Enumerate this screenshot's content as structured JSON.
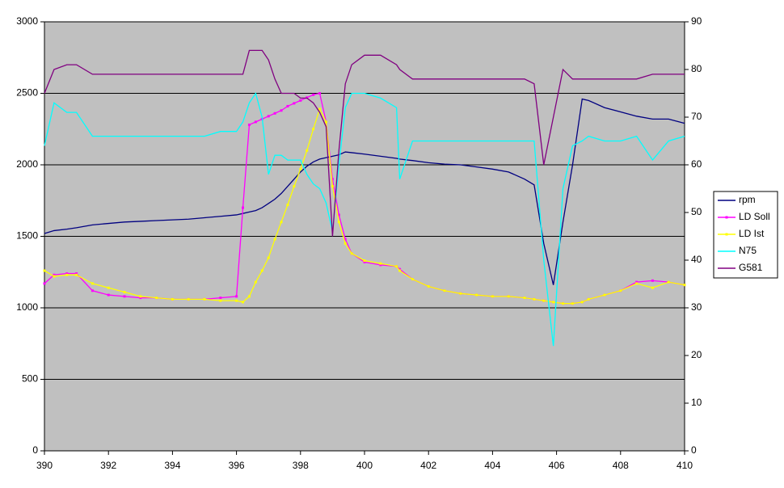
{
  "chart_data": {
    "type": "line",
    "x": [
      390,
      390.3,
      390.7,
      391,
      391.5,
      392,
      392.5,
      393,
      393.5,
      394,
      394.5,
      395,
      395.5,
      396,
      396.2,
      396.4,
      396.6,
      396.8,
      397,
      397.2,
      397.4,
      397.6,
      397.8,
      398,
      398.2,
      398.4,
      398.6,
      398.8,
      399,
      399.2,
      399.4,
      399.6,
      400,
      400.5,
      401,
      401.1,
      401.5,
      402,
      402.5,
      403,
      403.5,
      404,
      404.5,
      405,
      405.3,
      405.6,
      405.9,
      406.2,
      406.5,
      406.8,
      407,
      407.5,
      408,
      408.5,
      409,
      409.5,
      410
    ],
    "series": [
      {
        "name": "rpm",
        "color": "#000080",
        "markers": false,
        "values": [
          1520,
          1540,
          1550,
          1560,
          1580,
          1590,
          1600,
          1605,
          1610,
          1615,
          1620,
          1630,
          1640,
          1650,
          1660,
          1670,
          1680,
          1700,
          1730,
          1760,
          1800,
          1850,
          1900,
          1950,
          1990,
          2020,
          2040,
          2050,
          2060,
          2070,
          2090,
          2085,
          2075,
          2060,
          2045,
          2040,
          2030,
          2015,
          2005,
          2000,
          1985,
          1970,
          1950,
          1900,
          1860,
          1450,
          1160,
          1600,
          2000,
          2460,
          2450,
          2400,
          2370,
          2340,
          2320,
          2320,
          2290
        ]
      },
      {
        "name": "LD Soll",
        "color": "#ff00ff",
        "markers": true,
        "values": [
          1170,
          1230,
          1240,
          1240,
          1120,
          1090,
          1080,
          1070,
          1070,
          1060,
          1060,
          1060,
          1070,
          1080,
          1700,
          2280,
          2300,
          2320,
          2340,
          2360,
          2380,
          2410,
          2430,
          2450,
          2470,
          2490,
          2500,
          2300,
          1900,
          1650,
          1480,
          1380,
          1320,
          1300,
          1290,
          1270,
          1200,
          1150,
          1120,
          1100,
          1090,
          1080,
          1080,
          1070,
          1060,
          1050,
          1040,
          1030,
          1030,
          1040,
          1060,
          1090,
          1120,
          1180,
          1190,
          1180,
          1160
        ]
      },
      {
        "name": "LD Ist",
        "color": "#ffff00",
        "markers": true,
        "values": [
          1260,
          1220,
          1230,
          1230,
          1170,
          1140,
          1110,
          1080,
          1070,
          1060,
          1060,
          1060,
          1050,
          1050,
          1040,
          1080,
          1180,
          1260,
          1350,
          1480,
          1600,
          1720,
          1850,
          1970,
          2100,
          2250,
          2390,
          2300,
          1850,
          1600,
          1450,
          1380,
          1330,
          1310,
          1290,
          1260,
          1200,
          1150,
          1120,
          1100,
          1090,
          1080,
          1080,
          1070,
          1060,
          1050,
          1040,
          1030,
          1030,
          1040,
          1060,
          1090,
          1120,
          1170,
          1140,
          1180,
          1160
        ]
      },
      {
        "name": "N75",
        "color": "#00ffff",
        "markers": false,
        "axis": "y2",
        "values": [
          64,
          73,
          71,
          71,
          66,
          66,
          66,
          66,
          66,
          66,
          66,
          66,
          67,
          67,
          69,
          73,
          75,
          70,
          58,
          62,
          62,
          61,
          61,
          61,
          58,
          56,
          55,
          52,
          46,
          60,
          72,
          75,
          75,
          74,
          72,
          57,
          65,
          65,
          65,
          65,
          65,
          65,
          65,
          65,
          65,
          40,
          22,
          55,
          64,
          65,
          66,
          65,
          65,
          66,
          61,
          65,
          66
        ]
      },
      {
        "name": "G581",
        "color": "#800080",
        "markers": false,
        "axis": "y2",
        "values": [
          75,
          80,
          81,
          81,
          79,
          79,
          79,
          79,
          79,
          79,
          79,
          79,
          79,
          79,
          79,
          84,
          84,
          84,
          82,
          78,
          75,
          75,
          75,
          74,
          74,
          73,
          71,
          68,
          45,
          63,
          77,
          81,
          83,
          83,
          81,
          80,
          78,
          78,
          78,
          78,
          78,
          78,
          78,
          78,
          77,
          60,
          70,
          80,
          78,
          78,
          78,
          78,
          78,
          78,
          79,
          79,
          79
        ]
      }
    ],
    "xlim": [
      390,
      410
    ],
    "xticks": [
      390,
      392,
      394,
      396,
      398,
      400,
      402,
      404,
      406,
      408,
      410
    ],
    "ylim": [
      0,
      3000
    ],
    "yticks": [
      0,
      500,
      1000,
      1500,
      2000,
      2500,
      3000
    ],
    "y2lim": [
      0,
      90
    ],
    "y2ticks": [
      0,
      10,
      20,
      30,
      40,
      50,
      60,
      70,
      80,
      90
    ],
    "grid": true,
    "legend": "right",
    "plot_background": "#c0c0c0"
  }
}
